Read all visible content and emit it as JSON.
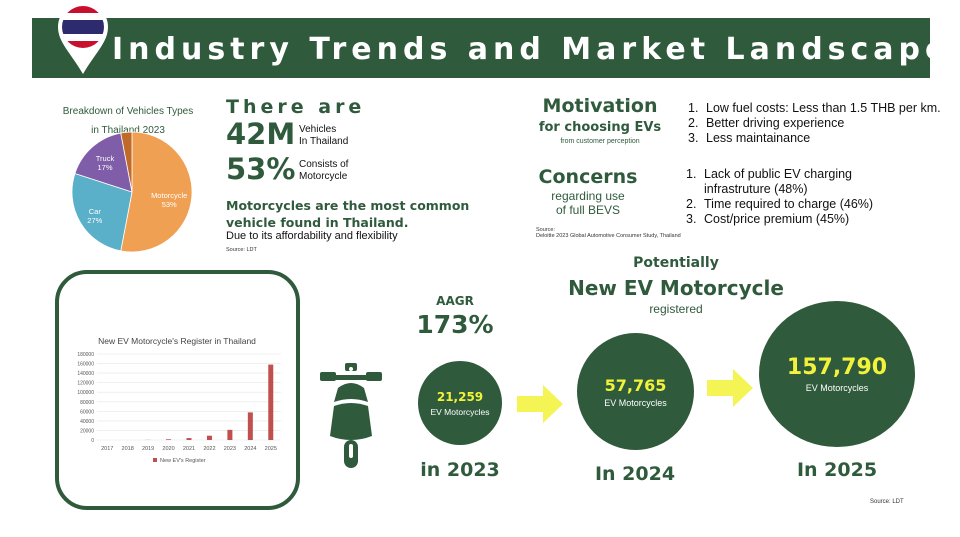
{
  "header": {
    "title": "Industry Trends and Market Landscape"
  },
  "pie": {
    "title_line1": "Breakdown of Vehicles Types",
    "title_line2": "in Thailand 2023",
    "source": "Source: LDT"
  },
  "chart_data": [
    {
      "type": "pie",
      "title": "Breakdown of Vehicles Types in Thailand 2023",
      "slices": [
        {
          "label": "Motorcycle",
          "value": 53,
          "pct_label": "53%",
          "color": "#f0a052"
        },
        {
          "label": "Car",
          "value": 27,
          "pct_label": "27%",
          "color": "#5aafc9"
        },
        {
          "label": "Truck",
          "value": 17,
          "pct_label": "17%",
          "color": "#7f5da8"
        },
        {
          "label": "",
          "value": 3,
          "pct_label": "",
          "color": "#c06a2a"
        }
      ]
    },
    {
      "type": "bar",
      "title": "New EV Motorcycle's Register in Thailand",
      "categories": [
        "2017",
        "2018",
        "2019",
        "2020",
        "2021",
        "2022",
        "2023",
        "2024",
        "2025"
      ],
      "series": [
        {
          "name": "New EV's Register",
          "values": [
            0,
            0,
            300,
            1500,
            4000,
            9000,
            21259,
            57765,
            157790
          ],
          "color": "#c0504d"
        }
      ],
      "yticks": [
        "0",
        "20000",
        "40000",
        "60000",
        "80000",
        "100000",
        "120000",
        "140000",
        "160000",
        "180000"
      ],
      "ylim": [
        0,
        180000
      ]
    }
  ],
  "stats": {
    "there_are": "There are",
    "vehicles_value": "42M",
    "vehicles_caption_1": "Vehicles",
    "vehicles_caption_2": "In Thailand",
    "moto_share_value": "53%",
    "moto_share_caption_1": "Consists of",
    "moto_share_caption_2": "Motorcycle",
    "common_line1": "Motorcycles are the most common",
    "common_line2": "vehicle found in Thailand.",
    "common_sub": "Due to its affordability and flexibility"
  },
  "motivation": {
    "heading": "Motivation",
    "heading2": "for choosing EVs",
    "sub": "from customer perception",
    "items": [
      {
        "num": "1.",
        "text": "Low fuel costs: Less than 1.5 THB per km."
      },
      {
        "num": "2.",
        "text": "Better driving experience"
      },
      {
        "num": "3.",
        "text": "Less maintainance"
      }
    ]
  },
  "concerns": {
    "heading": "Concerns",
    "sub1": "regarding use",
    "sub2": "of full BEVS",
    "items": [
      {
        "num": "1.",
        "text": "Lack of public EV charging"
      },
      {
        "num": "",
        "text": "infrastruture (48%)"
      },
      {
        "num": "2.",
        "text": "Time required to charge (46%)"
      },
      {
        "num": "3.",
        "text": "Cost/price premium (45%)"
      }
    ],
    "source_label": "Source:",
    "source_text": "Deloitte 2023 Global Automotive Consumer Study, Thailand"
  },
  "growth": {
    "aagr_label": "AAGR",
    "aagr_value": "173%",
    "potentially": "Potentially",
    "headline": "New EV Motorcycle",
    "registered": "registered",
    "circles": [
      {
        "value": "21,259",
        "label": "EV Motorcycles",
        "year": "in 2023"
      },
      {
        "value": "57,765",
        "label": "EV Motorcycles",
        "year": "In 2024"
      },
      {
        "value": "157,790",
        "label": "EV Motorcycles",
        "year": "In 2025"
      }
    ],
    "source": "Source: LDT"
  },
  "colors": {
    "brand_green": "#2f5a3c",
    "highlight_yellow": "#f2f23a",
    "arrow_yellow": "#f4f454"
  }
}
